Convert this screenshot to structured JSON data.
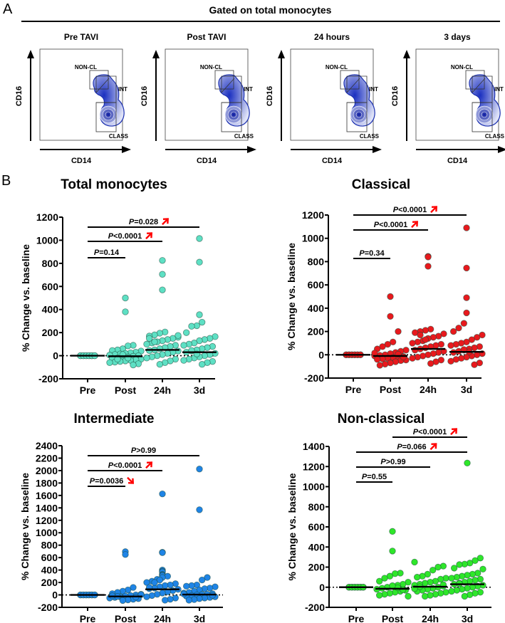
{
  "panel_a": {
    "letter": "A",
    "header": "Gated on total monocytes",
    "x_axis_label": "CD14",
    "y_axis_label": "CD16",
    "gates": {
      "nonclassical": "NON-CL",
      "intermediate": "INT",
      "classical": "CLASS"
    },
    "plots": [
      {
        "title": "Pre TAVI"
      },
      {
        "title": "Post TAVI"
      },
      {
        "title": "24 hours"
      },
      {
        "title": "3 days"
      }
    ]
  },
  "panel_b": {
    "letter": "B"
  },
  "colors": {
    "total": "#5ee0c4",
    "classical": "#e8191d",
    "intermediate": "#1f84e6",
    "nonclassical": "#2ee62a",
    "arrow": "#ff0000"
  },
  "chart_data": [
    {
      "type": "scatter",
      "title": "Total monocytes",
      "ylabel": "% Change vs. baseline",
      "ylim": [
        -200,
        1200
      ],
      "yticks": [
        -200,
        0,
        200,
        400,
        600,
        800,
        1000,
        1200
      ],
      "categories": [
        "Pre",
        "Post",
        "24h",
        "3d"
      ],
      "color_key": "total",
      "medians": [
        0,
        -5,
        50,
        30
      ],
      "groups": [
        [
          0,
          0,
          0,
          0,
          0,
          0,
          0,
          0,
          0,
          0,
          0,
          0
        ],
        [
          500,
          380,
          90,
          85,
          60,
          50,
          45,
          40,
          30,
          25,
          20,
          15,
          10,
          5,
          0,
          -5,
          -10,
          -15,
          -20,
          -25,
          -30,
          -35,
          -40,
          -45,
          -50,
          -55,
          -60,
          -70,
          -80,
          -20,
          10,
          -30
        ],
        [
          825,
          705,
          570,
          205,
          195,
          180,
          170,
          160,
          150,
          140,
          130,
          120,
          110,
          100,
          90,
          80,
          70,
          60,
          50,
          45,
          40,
          30,
          20,
          10,
          0,
          -10,
          -20,
          -30,
          -45,
          -60,
          -75,
          120,
          150,
          175
        ],
        [
          1015,
          810,
          355,
          290,
          260,
          255,
          200,
          165,
          150,
          140,
          130,
          110,
          100,
          90,
          80,
          70,
          60,
          50,
          40,
          30,
          20,
          10,
          0,
          -10,
          -20,
          -30,
          -40,
          -50,
          -60,
          -75,
          15,
          45
        ]
      ],
      "comparisons": [
        {
          "from": 0,
          "to": 1,
          "p_symbol": "P",
          "p_text": "=0.14",
          "direction": ""
        },
        {
          "from": 0,
          "to": 2,
          "p_symbol": "P",
          "p_text": "<0.0001",
          "direction": "up"
        },
        {
          "from": 0,
          "to": 3,
          "p_symbol": "P",
          "p_text": "=0.028",
          "direction": "up"
        }
      ]
    },
    {
      "type": "scatter",
      "title": "Classical",
      "ylabel": "% Change vs. baseline",
      "ylim": [
        -200,
        1200
      ],
      "yticks": [
        -200,
        0,
        200,
        400,
        600,
        800,
        1000,
        1200
      ],
      "categories": [
        "Pre",
        "Post",
        "24h",
        "3d"
      ],
      "color_key": "classical",
      "medians": [
        0,
        -10,
        50,
        25
      ],
      "groups": [
        [
          0,
          0,
          0,
          0,
          0,
          0,
          0,
          0,
          0,
          0,
          0,
          0
        ],
        [
          500,
          330,
          200,
          110,
          90,
          70,
          50,
          40,
          30,
          20,
          10,
          0,
          -5,
          -10,
          -15,
          -20,
          -25,
          -30,
          -35,
          -40,
          -45,
          -50,
          -60,
          -70,
          -80,
          -90,
          15,
          -20,
          5
        ],
        [
          845,
          840,
          760,
          220,
          210,
          200,
          190,
          180,
          160,
          150,
          140,
          120,
          110,
          100,
          90,
          80,
          70,
          60,
          50,
          40,
          30,
          20,
          10,
          0,
          -10,
          -20,
          -30,
          -45,
          -60,
          -75,
          130,
          170
        ],
        [
          1090,
          745,
          490,
          360,
          270,
          230,
          200,
          170,
          150,
          130,
          110,
          100,
          90,
          80,
          70,
          60,
          50,
          40,
          30,
          20,
          10,
          0,
          -10,
          -20,
          -30,
          -40,
          -55,
          -70,
          -85,
          25,
          45
        ]
      ],
      "comparisons": [
        {
          "from": 0,
          "to": 1,
          "p_symbol": "P",
          "p_text": "=0.34",
          "direction": ""
        },
        {
          "from": 0,
          "to": 2,
          "p_symbol": "P",
          "p_text": "<0.0001",
          "direction": "up"
        },
        {
          "from": 0,
          "to": 3,
          "p_symbol": "P",
          "p_text": "<0.0001",
          "direction": "up"
        }
      ]
    },
    {
      "type": "scatter",
      "title": "Intermediate",
      "ylabel": "% Change vs. baseline",
      "ylim": [
        -200,
        2400
      ],
      "yticks": [
        -200,
        0,
        200,
        400,
        600,
        800,
        1000,
        1200,
        1400,
        1600,
        1800,
        2000,
        2200,
        2400
      ],
      "categories": [
        "Pre",
        "Post",
        "24h",
        "3d"
      ],
      "color_key": "intermediate",
      "medians": [
        0,
        -25,
        90,
        5
      ],
      "groups": [
        [
          0,
          0,
          0,
          0,
          0,
          0,
          0,
          0,
          0,
          0,
          0,
          0
        ],
        [
          695,
          650,
          120,
          80,
          60,
          40,
          20,
          10,
          0,
          -10,
          -20,
          -30,
          -40,
          -50,
          -60,
          -70,
          -80,
          -90,
          -25,
          -15,
          5,
          -35
        ],
        [
          1625,
          685,
          680,
          400,
          380,
          370,
          330,
          320,
          310,
          300,
          280,
          250,
          220,
          200,
          180,
          160,
          150,
          130,
          110,
          100,
          90,
          70,
          50,
          30,
          10,
          -10,
          -30,
          -50,
          -70,
          -85,
          240,
          200,
          120
        ],
        [
          2025,
          1370,
          280,
          240,
          160,
          150,
          140,
          130,
          110,
          100,
          80,
          60,
          40,
          30,
          20,
          10,
          5,
          0,
          -10,
          -20,
          -30,
          -40,
          -50,
          -60,
          -75,
          -85,
          15,
          -5
        ]
      ],
      "comparisons": [
        {
          "from": 0,
          "to": 1,
          "p_symbol": "P",
          "p_text": "=0.0036",
          "direction": "down"
        },
        {
          "from": 0,
          "to": 2,
          "p_symbol": "P",
          "p_text": "<0.0001",
          "direction": "up"
        },
        {
          "from": 0,
          "to": 3,
          "p_symbol": "P",
          "p_text": ">0.99",
          "direction": ""
        }
      ]
    },
    {
      "type": "scatter",
      "title": "Non-classical",
      "ylabel": "% Change vs. baseline",
      "ylim": [
        -200,
        1400
      ],
      "yticks": [
        -200,
        0,
        200,
        400,
        600,
        800,
        1000,
        1200,
        1400
      ],
      "categories": [
        "Pre",
        "Post",
        "24h",
        "3d"
      ],
      "color_key": "nonclassical",
      "medians": [
        0,
        -15,
        5,
        30
      ],
      "groups": [
        [
          0,
          0,
          0,
          0,
          0,
          0,
          0,
          0,
          0,
          0,
          0,
          0
        ],
        [
          555,
          360,
          140,
          135,
          110,
          90,
          60,
          50,
          30,
          20,
          10,
          0,
          -10,
          -20,
          -30,
          -40,
          -50,
          -60,
          -70,
          -80,
          -90,
          -25,
          -5,
          15
        ],
        [
          250,
          210,
          200,
          170,
          130,
          110,
          100,
          90,
          80,
          60,
          50,
          40,
          30,
          20,
          10,
          0,
          -10,
          -20,
          -30,
          -40,
          -50,
          -60,
          -70,
          -80,
          -90,
          5,
          -15,
          25
        ],
        [
          1235,
          290,
          265,
          240,
          230,
          225,
          190,
          180,
          140,
          130,
          120,
          110,
          100,
          90,
          80,
          70,
          60,
          50,
          40,
          30,
          20,
          10,
          0,
          -10,
          -20,
          -30,
          -40,
          -50,
          -60,
          -75,
          -90,
          35
        ]
      ],
      "comparisons": [
        {
          "from": 0,
          "to": 1,
          "p_symbol": "P",
          "p_text": "=0.55",
          "direction": ""
        },
        {
          "from": 0,
          "to": 2,
          "p_symbol": "P",
          "p_text": ">0.99",
          "direction": ""
        },
        {
          "from": 0,
          "to": 3,
          "p_symbol": "P",
          "p_text": "=0.066",
          "direction": "up"
        },
        {
          "from": 1,
          "to": 3,
          "p_symbol": "P",
          "p_text": "<0.0001",
          "direction": "up"
        }
      ]
    }
  ]
}
